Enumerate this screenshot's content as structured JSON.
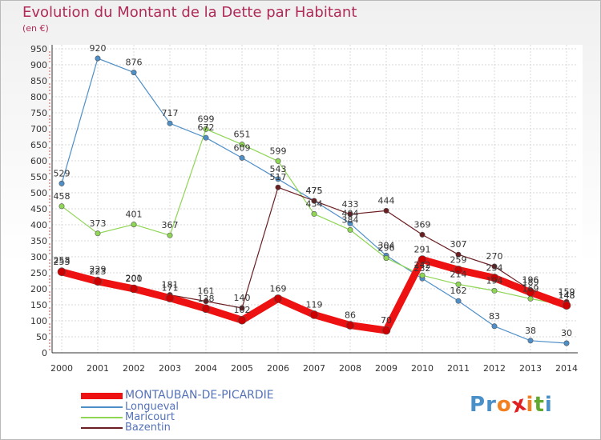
{
  "title": "Evolution du Montant de la Dette par Habitant",
  "unit": "(en €)",
  "logo": {
    "text": "Proxiti",
    "letters": [
      "P",
      "r",
      "o",
      "x",
      "i",
      "t",
      "i"
    ],
    "colors": [
      "#4a90c8",
      "#4a90c8",
      "#f08020",
      "#e02020",
      "#f08020",
      "#60a830",
      "#4a90c8"
    ]
  },
  "chart_data": {
    "type": "line",
    "x": [
      "2000",
      "2001",
      "2002",
      "2003",
      "2004",
      "2005",
      "2006",
      "2007",
      "2008",
      "2009",
      "2010",
      "2011",
      "2012",
      "2013",
      "2014"
    ],
    "ylim": [
      0,
      950
    ],
    "yticks": [
      0,
      50,
      100,
      150,
      200,
      250,
      300,
      350,
      400,
      450,
      500,
      550,
      600,
      650,
      700,
      750,
      800,
      850,
      900,
      950
    ],
    "grid": true,
    "legend_position": "bottom-left",
    "series": [
      {
        "name": "MONTAUBAN-DE-PICARDIE",
        "color": "#ee1111",
        "values": [
          253,
          223,
          200,
          171,
          138,
          102,
          169,
          119,
          86,
          70,
          291,
          259,
          234,
          189,
          148
        ]
      },
      {
        "name": "Longueval",
        "color": "#4e8fc8",
        "values": [
          529,
          920,
          876,
          717,
          672,
          609,
          543,
          475,
          404,
          304,
          232,
          162,
          83,
          38,
          30
        ]
      },
      {
        "name": "Maricourt",
        "color": "#8ed654",
        "values": [
          458,
          373,
          401,
          367,
          699,
          651,
          599,
          434,
          384,
          296,
          242,
          214,
          194,
          169,
          148
        ]
      },
      {
        "name": "Bazentin",
        "color": "#6b1e22",
        "values": [
          258,
          229,
          201,
          181,
          161,
          140,
          517,
          475,
          433,
          444,
          369,
          307,
          270,
          196,
          159
        ]
      }
    ]
  }
}
